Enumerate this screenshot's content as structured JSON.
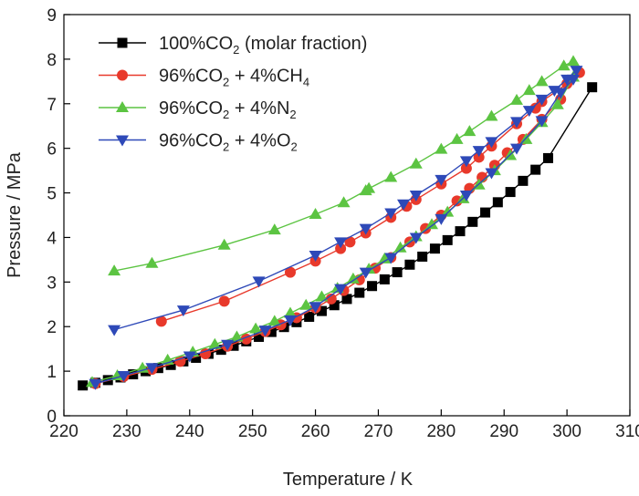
{
  "chart_data": {
    "type": "line",
    "title": "",
    "xlabel": "Temperature / K",
    "ylabel": "Pressure / MPa",
    "xlim": [
      220,
      310
    ],
    "ylim": [
      0,
      9
    ],
    "xticks": [
      220,
      230,
      240,
      250,
      260,
      270,
      280,
      290,
      300,
      310
    ],
    "yticks": [
      0,
      1,
      2,
      3,
      4,
      5,
      6,
      7,
      8,
      9
    ],
    "grid": false,
    "legend_position": "top-left",
    "series": [
      {
        "name": "100%CO2 (molar fraction)",
        "label_parts": [
          {
            "text": "100%CO",
            "sub": false
          },
          {
            "text": "2",
            "sub": true
          },
          {
            "text": " (molar fraction)",
            "sub": false
          }
        ],
        "color": "#000000",
        "marker": "square",
        "segments": [
          {
            "x": [
              223,
              225,
              227,
              229,
              231,
              233,
              235,
              237,
              239,
              241,
              243,
              245,
              247,
              249,
              251,
              253,
              255,
              257,
              259,
              261,
              263,
              265,
              267,
              269,
              271,
              273,
              275,
              277,
              279,
              281,
              283,
              285,
              287,
              289,
              291,
              293,
              295,
              297,
              304
            ],
            "y": [
              0.68,
              0.74,
              0.8,
              0.86,
              0.93,
              1.0,
              1.07,
              1.14,
              1.22,
              1.3,
              1.39,
              1.48,
              1.57,
              1.67,
              1.77,
              1.88,
              1.99,
              2.1,
              2.22,
              2.35,
              2.48,
              2.62,
              2.76,
              2.91,
              3.06,
              3.22,
              3.39,
              3.57,
              3.75,
              3.94,
              4.14,
              4.35,
              4.56,
              4.79,
              5.02,
              5.27,
              5.52,
              5.78,
              7.37
            ]
          }
        ]
      },
      {
        "name": "96%CO2 + 4%CH4",
        "label_parts": [
          {
            "text": "96%CO",
            "sub": false
          },
          {
            "text": "2",
            "sub": true
          },
          {
            "text": " + 4%CH",
            "sub": false
          },
          {
            "text": "4",
            "sub": true
          }
        ],
        "color": "#e8392b",
        "marker": "circle",
        "segments": [
          {
            "x": [
              235.5,
              245.5,
              256,
              260,
              264,
              265.5,
              268,
              272,
              274.5,
              276,
              280,
              284,
              286,
              288,
              292,
              295,
              296,
              300,
              302
            ],
            "y": [
              2.12,
              2.57,
              3.22,
              3.47,
              3.75,
              3.9,
              4.1,
              4.45,
              4.7,
              4.85,
              5.2,
              5.55,
              5.8,
              6.05,
              6.55,
              6.9,
              7.05,
              7.45,
              7.7
            ]
          },
          {
            "x": [
              225,
              229.5,
              234,
              238.5,
              242.5,
              246,
              249,
              252,
              254.5,
              257,
              260,
              262.5,
              264.5,
              267,
              269.5,
              272,
              275,
              277.5,
              280,
              282.5,
              284.5,
              286.5,
              288.5,
              290.5,
              293,
              296,
              299
            ],
            "y": [
              0.72,
              0.88,
              1.04,
              1.22,
              1.39,
              1.56,
              1.72,
              1.89,
              2.04,
              2.2,
              2.42,
              2.62,
              2.81,
              3.05,
              3.31,
              3.55,
              3.9,
              4.2,
              4.5,
              4.82,
              5.1,
              5.35,
              5.62,
              5.9,
              6.2,
              6.65,
              7.1
            ]
          }
        ]
      },
      {
        "name": "96%CO2 + 4%N2",
        "label_parts": [
          {
            "text": "96%CO",
            "sub": false
          },
          {
            "text": "2",
            "sub": true
          },
          {
            "text": " + 4%N",
            "sub": false
          },
          {
            "text": "2",
            "sub": true
          }
        ],
        "color": "#5cc442",
        "marker": "triangle-up",
        "segments": [
          {
            "x": [
              228,
              234,
              245.5,
              253.5,
              260,
              264.5,
              268,
              268.5,
              272,
              276,
              280,
              282.5,
              284.5,
              288,
              292,
              294,
              296,
              299.5,
              301
            ],
            "y": [
              3.25,
              3.42,
              3.83,
              4.17,
              4.52,
              4.78,
              5.05,
              5.1,
              5.35,
              5.65,
              5.98,
              6.2,
              6.38,
              6.72,
              7.08,
              7.3,
              7.5,
              7.85,
              7.95
            ]
          },
          {
            "x": [
              224.5,
              228.5,
              232.5,
              236.5,
              240.5,
              244,
              247.5,
              250.5,
              253.5,
              256,
              258.5,
              261,
              263.5,
              266,
              268.5,
              271,
              273.5,
              276,
              278.5,
              281,
              283.5,
              286,
              288.5,
              291,
              293.5,
              296,
              298.5,
              301
            ],
            "y": [
              0.75,
              0.9,
              1.07,
              1.25,
              1.43,
              1.6,
              1.77,
              1.95,
              2.12,
              2.3,
              2.48,
              2.67,
              2.86,
              3.07,
              3.29,
              3.52,
              3.77,
              4.02,
              4.29,
              4.57,
              4.87,
              5.18,
              5.5,
              5.84,
              6.2,
              6.58,
              6.98,
              7.6
            ]
          }
        ]
      },
      {
        "name": "96%CO2 + 4%O2",
        "label_parts": [
          {
            "text": "96%CO",
            "sub": false
          },
          {
            "text": "2",
            "sub": true
          },
          {
            "text": " + 4%O",
            "sub": false
          },
          {
            "text": "2",
            "sub": true
          }
        ],
        "color": "#2e49b8",
        "marker": "triangle-down",
        "segments": [
          {
            "x": [
              228,
              239,
              251,
              260,
              264,
              268,
              272,
              274,
              276,
              280,
              284,
              286,
              288,
              292,
              294,
              296,
              298,
              300,
              301.5
            ],
            "y": [
              1.93,
              2.37,
              3.02,
              3.6,
              3.9,
              4.2,
              4.55,
              4.75,
              4.95,
              5.3,
              5.72,
              5.95,
              6.15,
              6.6,
              6.85,
              7.1,
              7.3,
              7.55,
              7.75
            ]
          },
          {
            "x": [
              225,
              229.5,
              234,
              240,
              246,
              252,
              256,
              260,
              264,
              268,
              272,
              276,
              280,
              284,
              288,
              292,
              296,
              299,
              301
            ],
            "y": [
              0.72,
              0.9,
              1.08,
              1.34,
              1.6,
              1.92,
              2.15,
              2.45,
              2.85,
              3.22,
              3.55,
              4.0,
              4.42,
              4.95,
              5.45,
              6.0,
              6.62,
              7.25,
              7.55
            ]
          }
        ]
      }
    ]
  }
}
